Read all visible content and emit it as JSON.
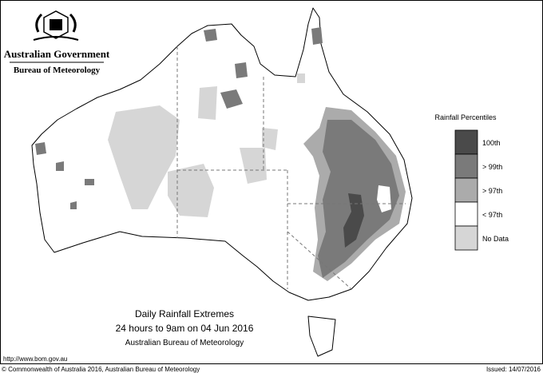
{
  "header": {
    "title": "Australian Government",
    "subtitle": "Bureau of Meteorology"
  },
  "legend": {
    "title": "Rainfall Percentiles",
    "items": [
      {
        "label": "100th",
        "color": "#4a4a4a"
      },
      {
        "label": "> 99th",
        "color": "#7a7a7a"
      },
      {
        "label": "> 97th",
        "color": "#ababab"
      },
      {
        "label": "< 97th",
        "color": "#ffffff"
      },
      {
        "label": "No Data",
        "color": "#d6d6d6"
      }
    ]
  },
  "caption": {
    "title": "Daily Rainfall Extremes",
    "period": "24 hours to 9am on 04 Jun 2016",
    "source": "Australian Bureau of Meteorology"
  },
  "footer": {
    "url": "http://www.bom.gov.au",
    "copyright": "© Commonwealth of Australia 2016, Australian Bureau of Meteorology",
    "issued": "Issued: 14/07/2016"
  }
}
